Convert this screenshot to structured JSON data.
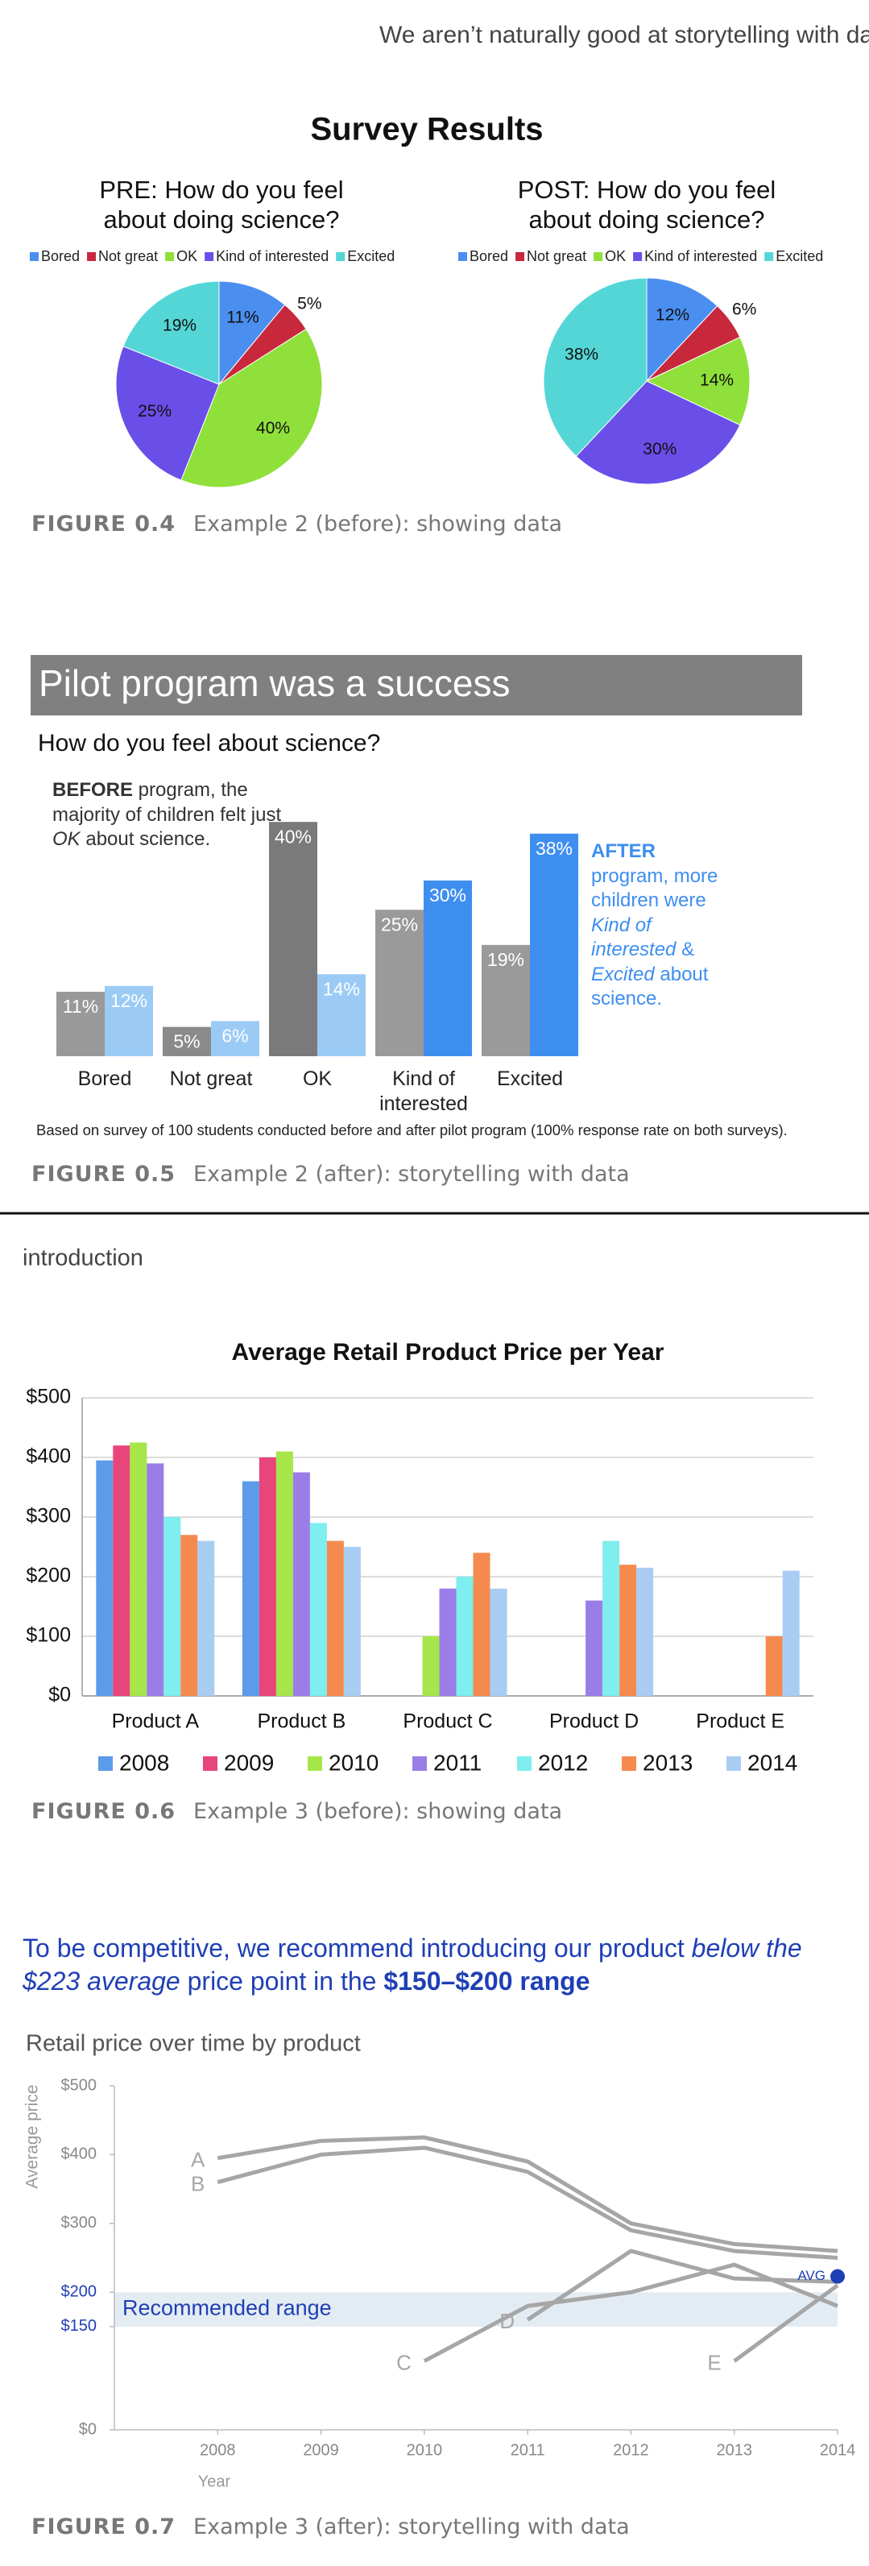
{
  "header": "We aren’t naturally good at storytelling with data",
  "survey_title": "Survey Results",
  "section_label": "introduction",
  "captions": [
    {
      "label": "FIGURE 0.4",
      "text": "Example 2 (before): showing data"
    },
    {
      "label": "FIGURE 0.5",
      "text": "Example 2 (after): storytelling with data"
    },
    {
      "label": "FIGURE 0.6",
      "text": "Example 3 (before): showing data"
    },
    {
      "label": "FIGURE 0.7",
      "text": "Example 3 (after): storytelling with data"
    }
  ],
  "chart_data": [
    {
      "type": "pie",
      "title": "PRE: How do you feel about doing science?",
      "categories": [
        "Bored",
        "Not great",
        "OK",
        "Kind of interested",
        "Excited"
      ],
      "values": [
        11,
        5,
        40,
        25,
        19
      ],
      "value_labels": [
        "11%",
        "5%",
        "40%",
        "25%",
        "19%"
      ],
      "colors": [
        "#4a8ff0",
        "#c8283c",
        "#8fe03a",
        "#6a4ee8",
        "#55d6d6"
      ]
    },
    {
      "type": "pie",
      "title": "POST: How do you feel about doing science?",
      "categories": [
        "Bored",
        "Not great",
        "OK",
        "Kind of interested",
        "Excited"
      ],
      "values": [
        12,
        6,
        14,
        30,
        38
      ],
      "value_labels": [
        "12%",
        "6%",
        "14%",
        "30%",
        "38%"
      ],
      "colors": [
        "#4a8ff0",
        "#c8283c",
        "#8fe03a",
        "#6a4ee8",
        "#55d6d6"
      ]
    },
    {
      "type": "bar",
      "title": "Pilot program was a success",
      "subtitle": "How do you feel about science?",
      "categories": [
        "Bored",
        "Not great",
        "OK",
        "Kind of interested",
        "Excited"
      ],
      "series": [
        {
          "name": "BEFORE",
          "colors": [
            "#999999",
            "#8a8a8a",
            "#7a7a7a",
            "#9a9a9a",
            "#9a9a9a"
          ],
          "values": [
            11,
            5,
            40,
            25,
            19
          ],
          "value_labels": [
            "11%",
            "5%",
            "40%",
            "25%",
            "19%"
          ]
        },
        {
          "name": "AFTER",
          "colors": [
            "#9bcbf5",
            "#9bcbf5",
            "#9bcbf5",
            "#3e8ef0",
            "#3e8ef0"
          ],
          "values": [
            12,
            6,
            14,
            30,
            38
          ],
          "value_labels": [
            "12%",
            "6%",
            "14%",
            "30%",
            "38%"
          ]
        }
      ],
      "annotations": [
        {
          "color": "#333333",
          "pieces": [
            {
              "text": " program, the majority of children felt just "
            },
            {
              "text": "OK",
              "style": "italic"
            },
            {
              "text": " about science."
            }
          ]
        },
        {
          "color": "#3e8ef0",
          "pieces": [
            {
              "text": " program, more children were "
            },
            {
              "text": "Kind of interested",
              "style": "italic"
            },
            {
              "text": " & "
            },
            {
              "text": "Excited",
              "style": "italic"
            },
            {
              "text": " about science."
            }
          ]
        }
      ],
      "note": "Based on survey of 100 students conducted before and after pilot program (100% response rate on both surveys)."
    },
    {
      "type": "bar",
      "title": "Average Retail Product Price per Year",
      "categories": [
        "Product A",
        "Product B",
        "Product C",
        "Product D",
        "Product E"
      ],
      "series": [
        {
          "name": "2008",
          "color": "#5b9bea",
          "values": [
            395,
            360,
            null,
            null,
            null
          ]
        },
        {
          "name": "2009",
          "color": "#e8457a",
          "values": [
            420,
            400,
            null,
            null,
            null
          ]
        },
        {
          "name": "2010",
          "color": "#a6e64a",
          "values": [
            425,
            410,
            100,
            null,
            null
          ]
        },
        {
          "name": "2011",
          "color": "#9b7de8",
          "values": [
            390,
            375,
            180,
            160,
            null
          ]
        },
        {
          "name": "2012",
          "color": "#7eeeee",
          "values": [
            300,
            290,
            200,
            260,
            null
          ]
        },
        {
          "name": "2013",
          "color": "#f58a4e",
          "values": [
            270,
            260,
            240,
            220,
            100
          ]
        },
        {
          "name": "2014",
          "color": "#a9cdf2",
          "values": [
            260,
            250,
            180,
            215,
            210
          ]
        }
      ],
      "ylim": [
        0,
        500
      ],
      "yticks": [
        {
          "value": 0,
          "label": "$0"
        },
        {
          "value": 100,
          "label": "$100"
        },
        {
          "value": 200,
          "label": "$200"
        },
        {
          "value": 300,
          "label": "$300"
        },
        {
          "value": 400,
          "label": "$400"
        },
        {
          "value": 500,
          "label": "$500"
        }
      ],
      "grid": true
    },
    {
      "type": "line",
      "title": "Retail price over time by product",
      "headline": [
        {
          "text": "To be competitive, we recommend introducing our product "
        },
        {
          "text": "below the $223 average",
          "style": "italic"
        },
        {
          "text": " price point in the "
        },
        {
          "text": "$150–$200 range",
          "style": "bold"
        }
      ],
      "ylabel": "Average price",
      "xlabel": "Year",
      "x": [
        2008,
        2009,
        2010,
        2011,
        2012,
        2013,
        2014
      ],
      "series": [
        {
          "name": "A",
          "color": "#a6a6a6",
          "values": [
            395,
            420,
            425,
            390,
            300,
            270,
            260
          ]
        },
        {
          "name": "B",
          "color": "#a6a6a6",
          "values": [
            360,
            400,
            410,
            375,
            290,
            260,
            250
          ]
        },
        {
          "name": "C",
          "color": "#a6a6a6",
          "values": [
            null,
            null,
            100,
            180,
            200,
            240,
            180
          ]
        },
        {
          "name": "D",
          "color": "#a6a6a6",
          "values": [
            null,
            null,
            null,
            160,
            260,
            220,
            215
          ]
        },
        {
          "name": "E",
          "color": "#a6a6a6",
          "values": [
            null,
            null,
            null,
            null,
            null,
            100,
            210
          ]
        }
      ],
      "xlim": [
        2007,
        2014
      ],
      "xticks": [
        2008,
        2009,
        2010,
        2011,
        2012,
        2013,
        2014
      ],
      "ylim": [
        0,
        500
      ],
      "yticks": [
        {
          "value": 0,
          "label": "$0"
        },
        {
          "value": 150,
          "label": "$150"
        },
        {
          "value": 200,
          "label": "$200"
        },
        {
          "value": 300,
          "label": "$300"
        },
        {
          "value": 400,
          "label": "$400"
        },
        {
          "value": 500,
          "label": "$500"
        }
      ],
      "band": {
        "from": 150,
        "to": 200,
        "label": "Recommended range",
        "color": "#e4ecf3",
        "text_color": "#1f3fb5"
      },
      "average": {
        "x": 2014,
        "value": 223,
        "label": "AVG",
        "color": "#1f3fb5"
      },
      "grid": false
    }
  ]
}
